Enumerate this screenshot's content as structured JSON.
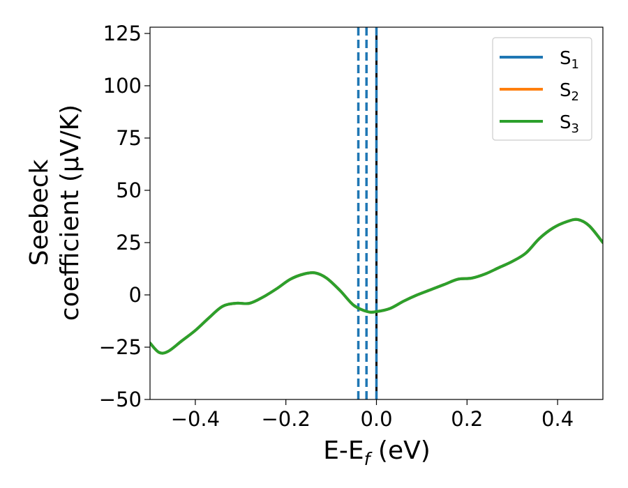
{
  "chart_data": {
    "type": "line",
    "xlabel": "E-E$_f$ (eV)",
    "xlabel_main": "E-E",
    "xlabel_sub": "f",
    "xlabel_tail": " (eV)",
    "ylabel_line1": "Seebeck",
    "ylabel_line2": "coefficient  (μV/K)",
    "xlim": [
      -0.5,
      0.5
    ],
    "ylim": [
      -50,
      128
    ],
    "xticks": [
      -0.4,
      -0.2,
      0.0,
      0.2,
      0.4
    ],
    "xtick_labels": [
      "−0.4",
      "−0.2",
      "0.0",
      "0.2",
      "0.4"
    ],
    "yticks": [
      -50,
      -25,
      0,
      25,
      50,
      75,
      100,
      125
    ],
    "ytick_labels": [
      "−50",
      "−25",
      "0",
      "25",
      "50",
      "75",
      "100",
      "125"
    ],
    "grid": false,
    "legend_position": "top-right",
    "series": [
      {
        "name": "S1",
        "label_main": "S",
        "label_sub": "1",
        "color": "#1f77b4",
        "x": [
          -0.5,
          -0.48,
          -0.46,
          -0.43,
          -0.4,
          -0.37,
          -0.34,
          -0.31,
          -0.28,
          -0.25,
          -0.22,
          -0.19,
          -0.16,
          -0.135,
          -0.11,
          -0.08,
          -0.05,
          -0.02,
          0.0,
          0.03,
          0.06,
          0.09,
          0.12,
          0.15,
          0.18,
          0.21,
          0.24,
          0.27,
          0.3,
          0.33,
          0.36,
          0.39,
          0.42,
          0.445,
          0.47,
          0.5
        ],
        "y": [
          -23,
          -27.5,
          -27,
          -22,
          -17,
          -11,
          -5.5,
          -4,
          -4,
          -1,
          3,
          7.5,
          10,
          10.5,
          8,
          2,
          -5,
          -8,
          -8,
          -6.5,
          -3,
          0,
          2.5,
          5,
          7.5,
          8,
          10,
          13,
          16,
          20,
          27,
          32,
          35,
          36,
          33,
          25
        ]
      },
      {
        "name": "S2",
        "label_main": "S",
        "label_sub": "2",
        "color": "#ff7f0e",
        "x": [
          -0.5,
          -0.48,
          -0.46,
          -0.43,
          -0.4,
          -0.37,
          -0.34,
          -0.31,
          -0.28,
          -0.25,
          -0.22,
          -0.19,
          -0.16,
          -0.135,
          -0.11,
          -0.08,
          -0.05,
          -0.02,
          0.0,
          0.03,
          0.06,
          0.09,
          0.12,
          0.15,
          0.18,
          0.21,
          0.24,
          0.27,
          0.3,
          0.33,
          0.36,
          0.39,
          0.42,
          0.445,
          0.47,
          0.5
        ],
        "y": [
          -23,
          -27.5,
          -27,
          -22,
          -17,
          -11,
          -5.5,
          -4,
          -4,
          -1,
          3,
          7.5,
          10,
          10.5,
          8,
          2,
          -5,
          -8,
          -8,
          -6.5,
          -3,
          0,
          2.5,
          5,
          7.5,
          8,
          10,
          13,
          16,
          20,
          27,
          32,
          35,
          36,
          33,
          25
        ]
      },
      {
        "name": "S3",
        "label_main": "S",
        "label_sub": "3",
        "color": "#2ca02c",
        "x": [
          -0.5,
          -0.48,
          -0.46,
          -0.43,
          -0.4,
          -0.37,
          -0.34,
          -0.31,
          -0.28,
          -0.25,
          -0.22,
          -0.19,
          -0.16,
          -0.135,
          -0.11,
          -0.08,
          -0.05,
          -0.02,
          0.0,
          0.03,
          0.06,
          0.09,
          0.12,
          0.15,
          0.18,
          0.21,
          0.24,
          0.27,
          0.3,
          0.33,
          0.36,
          0.39,
          0.42,
          0.445,
          0.47,
          0.5
        ],
        "y": [
          -23,
          -27.5,
          -27,
          -22,
          -17,
          -11,
          -5.5,
          -4,
          -4,
          -1,
          3,
          7.5,
          10,
          10.5,
          8,
          2,
          -5,
          -8,
          -8,
          -6.5,
          -3,
          0,
          2.5,
          5,
          7.5,
          8,
          10,
          13,
          16,
          20,
          27,
          32,
          35,
          36,
          33,
          25
        ]
      }
    ],
    "vertical_lines": [
      {
        "x": -0.04,
        "style": "dashed",
        "color": "#1f77b4"
      },
      {
        "x": -0.022,
        "style": "dashed",
        "color": "#1f77b4"
      },
      {
        "x": 0.0,
        "style": "solid",
        "color": "#000000"
      },
      {
        "x": 0.0,
        "style": "dashed",
        "color": "#1f77b4"
      }
    ]
  }
}
